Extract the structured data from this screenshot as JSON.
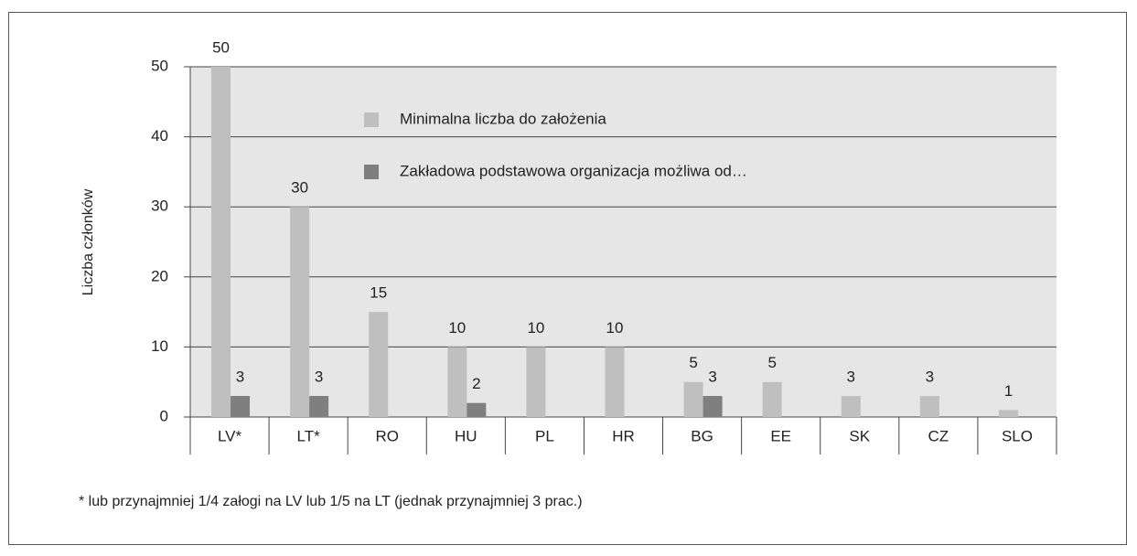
{
  "chart_data": {
    "type": "bar",
    "y_label": "Liczba członków",
    "footnote": "* lub przynajmniej 1/4 załogi na LV lub 1/5 na LT (jednak przynajmniej 3 prac.)",
    "categories": [
      "LV*",
      "LT*",
      "RO",
      "HU",
      "PL",
      "HR",
      "BG",
      "EE",
      "SK",
      "CZ",
      "SLO"
    ],
    "series": [
      {
        "name": "Minimalna liczba do założenia",
        "color": "#bfbfbf",
        "values": [
          50,
          30,
          15,
          10,
          10,
          10,
          5,
          5,
          3,
          3,
          1
        ]
      },
      {
        "name": "Zakładowa podstawowa organizacja możliwa od…",
        "color": "#7f7f7f",
        "values": [
          3,
          3,
          null,
          2,
          null,
          null,
          3,
          null,
          null,
          null,
          null
        ]
      }
    ],
    "ylim": [
      0,
      50
    ],
    "yticks": [
      0,
      10,
      20,
      30,
      40,
      50
    ],
    "grid": true
  }
}
